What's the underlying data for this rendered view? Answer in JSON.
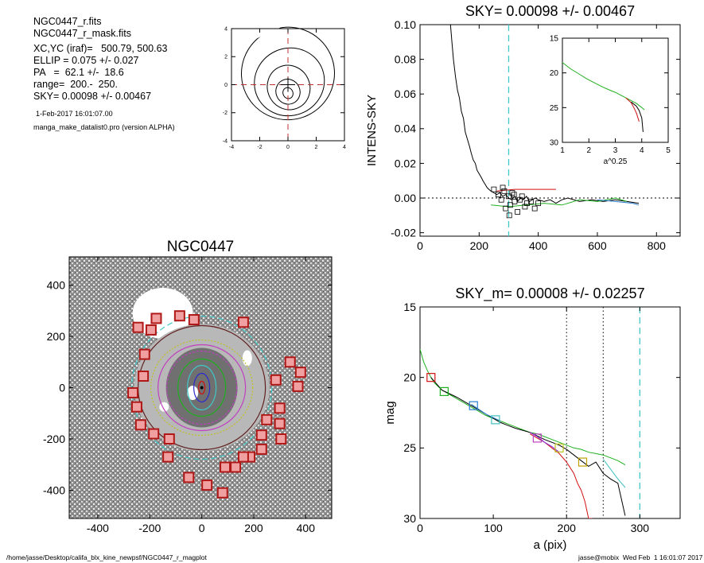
{
  "info": {
    "file": "NGC0447_r.fits",
    "mask": "NGC0447_r_mask.fits",
    "center": "XC,YC (iraf)=   500.79, 500.63",
    "ellip": "ELLIP = 0.075 +/- 0.027",
    "pa": "PA   =  62.1 +/-  18.6",
    "range": "range=  200.-  250.",
    "sky": "SKY= 0.00098 +/- 0.00467",
    "date": "1-Feb-2017 16:01:07.00",
    "program": "manga_make_datalist0.pro (version ALPHA)"
  },
  "footer": {
    "path": "/home/jasse/Desktop/califa_blx_kine_newpsf/NGC0447_r_magplot",
    "user": "jasse@mobix  Wed Feb  1 16:01:07 2017"
  },
  "chart_data": [
    {
      "type": "line",
      "id": "contour_center",
      "title": "",
      "xlim": [
        -4,
        4
      ],
      "ylim": [
        -4,
        4
      ],
      "xticks": [
        -4,
        -2,
        0,
        2,
        4
      ],
      "yticks": [
        -4,
        -2,
        0,
        2,
        4
      ],
      "contours": [
        {
          "cx": 0,
          "cy": 0.8,
          "rx": 3.3,
          "ry": 3.3
        },
        {
          "cx": 0.1,
          "cy": 0.2,
          "rx": 2.5,
          "ry": 2.4
        },
        {
          "cx": 0.05,
          "cy": -0.2,
          "rx": 1.5,
          "ry": 1.6
        },
        {
          "cx": 0,
          "cy": -0.5,
          "rx": 0.85,
          "ry": 0.9
        },
        {
          "cx": 0,
          "cy": -0.6,
          "rx": 0.35,
          "ry": 0.4
        }
      ],
      "crosshair": [
        0,
        0
      ]
    },
    {
      "type": "line",
      "id": "intens_sky",
      "title": "SKY= 0.00098 +/- 0.00467",
      "xlabel": "",
      "ylabel": "INTENS-SKY",
      "xlim": [
        0,
        880
      ],
      "ylim": [
        -0.022,
        0.1
      ],
      "xticks": [
        0,
        200,
        400,
        600,
        800
      ],
      "yticks": [
        -0.02,
        0.0,
        0.02,
        0.04,
        0.06,
        0.08,
        0.1
      ],
      "ytick_labels": [
        "-0.02",
        "0.00",
        "0.02",
        "0.04",
        "0.06",
        "0.08",
        "0.10"
      ],
      "vline": 300,
      "hline": 0,
      "series": [
        {
          "color": "#000000",
          "x": [
            103,
            108,
            113,
            120,
            127,
            133,
            140,
            147,
            153,
            160,
            167,
            173,
            180,
            187,
            193,
            200,
            207,
            213,
            220,
            227,
            233,
            240,
            250,
            260,
            270,
            280,
            290,
            300,
            310,
            320,
            330,
            340,
            350,
            360,
            370,
            380,
            390,
            400,
            420,
            440,
            460,
            480,
            500,
            540,
            580,
            620,
            660,
            700,
            740
          ],
          "y": [
            0.1,
            0.09,
            0.08,
            0.07,
            0.062,
            0.058,
            0.05,
            0.046,
            0.038,
            0.034,
            0.03,
            0.026,
            0.022,
            0.02,
            0.016,
            0.014,
            0.012,
            0.01,
            0.008,
            0.006,
            0.005,
            0.004,
            0.003,
            0.002,
            0.003,
            0.001,
            0.002,
            0.0,
            -0.001,
            0.001,
            -0.002,
            0.0,
            -0.001,
            0.001,
            -0.002,
            -0.001,
            0.0,
            -0.001,
            -0.002,
            -0.001,
            -0.003,
            -0.001,
            0.0,
            -0.002,
            -0.001,
            -0.002,
            -0.001,
            -0.002,
            -0.003
          ]
        },
        {
          "color": "#d01010",
          "x": [
            260,
            320,
            380,
            460
          ],
          "y": [
            0.004,
            0.005,
            0.005,
            0.005
          ]
        },
        {
          "color": "#1fb01f",
          "x": [
            240,
            300,
            360,
            420,
            480,
            540,
            600,
            660,
            700
          ],
          "y": [
            -0.004,
            -0.005,
            -0.004,
            -0.003,
            -0.004,
            -0.001,
            -0.002,
            0.0,
            -0.002
          ]
        },
        {
          "color": "#2a7fd0",
          "x": [
            600,
            660,
            720,
            740
          ],
          "y": [
            -0.001,
            -0.002,
            -0.003,
            -0.004
          ]
        }
      ],
      "squares": [
        [
          250,
          0.005
        ],
        [
          265,
          0.002
        ],
        [
          275,
          -0.001
        ],
        [
          285,
          0.004
        ],
        [
          290,
          -0.006
        ],
        [
          300,
          0.001
        ],
        [
          305,
          -0.004
        ],
        [
          312,
          0.003
        ],
        [
          320,
          -0.002
        ],
        [
          330,
          -0.008
        ],
        [
          338,
          -0.001
        ],
        [
          345,
          0.001
        ],
        [
          355,
          -0.005
        ],
        [
          362,
          -0.003
        ],
        [
          375,
          -0.002
        ],
        [
          388,
          -0.006
        ],
        [
          302,
          -0.01
        ],
        [
          318,
          0.002
        ],
        [
          400,
          -0.003
        ],
        [
          280,
          0.006
        ]
      ],
      "inset": {
        "xlabel": "a^0.25",
        "xlim": [
          1,
          5
        ],
        "ylim": [
          15,
          30
        ],
        "xticks": [
          1,
          2,
          3,
          4,
          5
        ],
        "yticks": [
          15,
          20,
          25,
          30
        ],
        "series": [
          {
            "color": "#1fb01f",
            "x": [
              1.0,
              1.3,
              1.6,
              1.9,
              2.2,
              2.5,
              2.8,
              3.0,
              3.2,
              3.4,
              3.6,
              3.8,
              4.0,
              4.1
            ],
            "y": [
              18.5,
              19.4,
              20.1,
              20.8,
              21.4,
              22.0,
              22.5,
              22.8,
              23.2,
              23.6,
              24.0,
              24.4,
              25.0,
              25.3
            ]
          },
          {
            "color": "#d01010",
            "x": [
              3.4,
              3.6,
              3.7,
              3.8,
              3.9
            ],
            "y": [
              23.6,
              24.3,
              25.0,
              25.8,
              27.0
            ]
          },
          {
            "color": "#000000",
            "x": [
              3.6,
              3.8,
              3.9,
              4.0,
              4.05
            ],
            "y": [
              24.2,
              24.8,
              25.4,
              26.5,
              28.5
            ]
          }
        ]
      }
    },
    {
      "type": "heatmap",
      "id": "galaxy_image",
      "title": "NGC0447",
      "xlim": [
        -510,
        500
      ],
      "ylim": [
        -510,
        510
      ],
      "xticks": [
        -400,
        -200,
        0,
        200,
        400
      ],
      "yticks": [
        -400,
        -200,
        0,
        200,
        400
      ],
      "markers": [
        [
          -85,
          280
        ],
        [
          -175,
          270
        ],
        [
          -245,
          235
        ],
        [
          -30,
          265
        ],
        [
          160,
          255
        ],
        [
          -195,
          225
        ],
        [
          -220,
          130
        ],
        [
          -225,
          45
        ],
        [
          -265,
          -20
        ],
        [
          -250,
          -75
        ],
        [
          -235,
          -145
        ],
        [
          -185,
          -180
        ],
        [
          -125,
          -200
        ],
        [
          -130,
          -270
        ],
        [
          -50,
          -350
        ],
        [
          20,
          -380
        ],
        [
          80,
          -410
        ],
        [
          130,
          -310
        ],
        [
          90,
          -310
        ],
        [
          185,
          -270
        ],
        [
          160,
          -270
        ],
        [
          230,
          -240
        ],
        [
          230,
          -185
        ],
        [
          250,
          -125
        ],
        [
          300,
          -140
        ],
        [
          305,
          -200
        ],
        [
          300,
          -80
        ],
        [
          285,
          30
        ],
        [
          340,
          100
        ],
        [
          380,
          60
        ],
        [
          370,
          5
        ]
      ]
    },
    {
      "type": "line",
      "id": "mag_profile",
      "title": "SKY_m=  0.00008 +/- 0.02257",
      "xlabel": "a (pix)",
      "ylabel": "mag",
      "xlim": [
        0,
        355
      ],
      "ylim": [
        15,
        30
      ],
      "xticks": [
        0,
        100,
        200,
        300
      ],
      "yticks": [
        15,
        20,
        25,
        30
      ],
      "vlines_dotted": [
        200,
        250
      ],
      "vline_dashed": 300,
      "series": [
        {
          "color": "#1fb01f",
          "x": [
            0,
            5,
            10,
            15,
            20,
            30,
            40,
            50,
            60,
            70,
            80,
            90,
            100,
            110,
            120,
            130,
            140,
            150,
            160,
            170,
            180,
            190,
            200,
            210,
            220,
            230,
            240,
            250,
            260,
            270,
            280
          ],
          "y": [
            18.0,
            18.9,
            19.5,
            20.0,
            20.4,
            20.9,
            21.2,
            21.5,
            21.8,
            22.1,
            22.4,
            22.7,
            22.9,
            23.1,
            23.3,
            23.5,
            23.7,
            23.9,
            24.0,
            24.2,
            24.4,
            24.6,
            24.8,
            25.0,
            25.1,
            25.3,
            25.4,
            25.5,
            25.7,
            25.9,
            26.2
          ]
        },
        {
          "color": "#000000",
          "x": [
            15,
            30,
            50,
            70,
            90,
            110,
            130,
            150,
            170,
            190,
            200,
            210,
            220,
            230,
            240,
            250,
            260,
            270,
            280
          ],
          "y": [
            20.0,
            20.9,
            21.4,
            22.0,
            22.6,
            23.2,
            23.6,
            23.9,
            24.4,
            24.8,
            25.1,
            25.5,
            25.9,
            26.3,
            26.0,
            26.8,
            27.2,
            27.5,
            29.8
          ]
        },
        {
          "color": "#d01010",
          "x": [
            150,
            170,
            190,
            200,
            210,
            215,
            220,
            225,
            230,
            235
          ],
          "y": [
            24.0,
            24.6,
            25.4,
            26.0,
            26.8,
            27.5,
            28.0,
            28.8,
            30.0,
            30.0
          ]
        },
        {
          "color": "#8a2be2",
          "x": [
            150,
            160,
            170,
            180,
            190
          ],
          "y": [
            23.9,
            24.2,
            24.6,
            24.9,
            25.3
          ]
        },
        {
          "color": "#2a7fd0",
          "x": [
            70,
            90,
            110
          ],
          "y": [
            21.9,
            22.6,
            23.1
          ]
        },
        {
          "color": "#40c0c0",
          "x": [
            250,
            260,
            270,
            280
          ],
          "y": [
            25.8,
            26.5,
            27.2,
            27.8
          ]
        }
      ],
      "squares": [
        {
          "x": 15,
          "y": 20.0,
          "color": "#d01010"
        },
        {
          "x": 33,
          "y": 21.0,
          "color": "#1fb01f"
        },
        {
          "x": 73,
          "y": 22.0,
          "color": "#2a7fd0"
        },
        {
          "x": 103,
          "y": 23.0,
          "color": "#40c0c0"
        },
        {
          "x": 160,
          "y": 24.3,
          "color": "#c040c0"
        },
        {
          "x": 190,
          "y": 25.0,
          "color": "#c0c020"
        },
        {
          "x": 222,
          "y": 26.0,
          "color": "#c0a000"
        }
      ]
    }
  ]
}
